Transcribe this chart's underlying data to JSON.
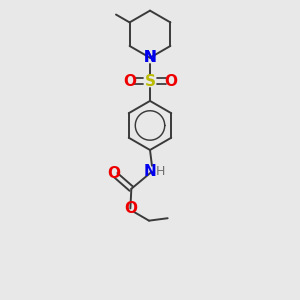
{
  "background_color": "#e8e8e8",
  "bond_color": "#3a3a3a",
  "bond_width": 1.4,
  "colors": {
    "N": "#0000EE",
    "O": "#EE0000",
    "S": "#BBBB00",
    "C": "#3a3a3a",
    "H": "#707070"
  },
  "figsize": [
    3.0,
    3.0
  ],
  "dpi": 100
}
